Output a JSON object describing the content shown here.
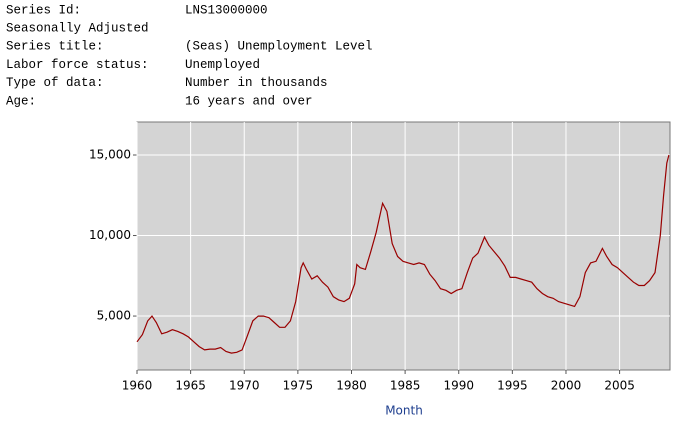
{
  "header": {
    "rows": [
      [
        "Series Id:",
        "LNS13000000"
      ],
      [
        "Seasonally Adjusted"
      ],
      [
        "Series title:",
        "(Seas) Unemployment Level"
      ],
      [
        "Labor force status:",
        "Unemployed"
      ],
      [
        "Type of data:",
        "Number in thousands"
      ],
      [
        "Age:",
        "16 years and over"
      ]
    ]
  },
  "chart_data": {
    "type": "line",
    "x_label": "Month",
    "xlim": [
      1960,
      2009.7
    ],
    "xticks": [
      1960,
      1965,
      1970,
      1975,
      1980,
      1985,
      1990,
      1995,
      2000,
      2005
    ],
    "ylim": [
      1650,
      17050
    ],
    "yticks": [
      {
        "value": 5000,
        "label": "5,000"
      },
      {
        "value": 10000,
        "label": "10,000"
      },
      {
        "value": 15000,
        "label": "15,000"
      }
    ],
    "grid": true,
    "x": [
      1960.0,
      1960.5,
      1961.0,
      1961.4,
      1961.8,
      1962.3,
      1962.8,
      1963.3,
      1963.8,
      1964.3,
      1964.8,
      1965.3,
      1965.8,
      1966.3,
      1966.8,
      1967.3,
      1967.8,
      1968.3,
      1968.8,
      1969.3,
      1969.8,
      1970.3,
      1970.8,
      1971.3,
      1971.8,
      1972.3,
      1972.8,
      1973.3,
      1973.8,
      1974.3,
      1974.8,
      1975.3,
      1975.5,
      1975.8,
      1976.3,
      1976.8,
      1977.3,
      1977.8,
      1978.3,
      1978.8,
      1979.3,
      1979.8,
      1980.3,
      1980.5,
      1980.8,
      1981.3,
      1981.8,
      1982.3,
      1982.9,
      1983.3,
      1983.8,
      1984.3,
      1984.8,
      1985.3,
      1985.8,
      1986.3,
      1986.8,
      1987.3,
      1987.8,
      1988.3,
      1988.8,
      1989.3,
      1989.8,
      1990.3,
      1990.8,
      1991.3,
      1991.8,
      1992.4,
      1992.8,
      1993.3,
      1993.8,
      1994.3,
      1994.8,
      1995.3,
      1995.8,
      1996.3,
      1996.8,
      1997.3,
      1997.8,
      1998.3,
      1998.8,
      1999.3,
      1999.8,
      2000.3,
      2000.8,
      2001.3,
      2001.8,
      2002.3,
      2002.8,
      2003.4,
      2003.8,
      2004.3,
      2004.8,
      2005.3,
      2005.8,
      2006.3,
      2006.8,
      2007.3,
      2007.8,
      2008.3,
      2008.8,
      2009.1,
      2009.4,
      2009.6
    ],
    "series": [
      {
        "name": "(Seas) Unemployment Level",
        "color": "#990000",
        "values": [
          3400,
          3850,
          4700,
          5000,
          4600,
          3900,
          4000,
          4150,
          4050,
          3900,
          3700,
          3400,
          3100,
          2900,
          2950,
          2950,
          3050,
          2800,
          2700,
          2750,
          2900,
          3800,
          4700,
          5000,
          5000,
          4900,
          4600,
          4300,
          4300,
          4700,
          5900,
          8000,
          8300,
          7900,
          7300,
          7500,
          7100,
          6800,
          6200,
          6000,
          5900,
          6100,
          7000,
          8200,
          8000,
          7900,
          9000,
          10200,
          12000,
          11500,
          9500,
          8700,
          8400,
          8300,
          8200,
          8300,
          8200,
          7600,
          7200,
          6700,
          6600,
          6400,
          6600,
          6700,
          7700,
          8600,
          8900,
          9900,
          9400,
          9000,
          8600,
          8100,
          7400,
          7400,
          7300,
          7200,
          7100,
          6700,
          6400,
          6200,
          6100,
          5900,
          5800,
          5700,
          5600,
          6200,
          7700,
          8300,
          8400,
          9200,
          8700,
          8200,
          8000,
          7700,
          7400,
          7100,
          6900,
          6900,
          7200,
          7700,
          10000,
          12500,
          14500,
          15000
        ]
      }
    ]
  }
}
